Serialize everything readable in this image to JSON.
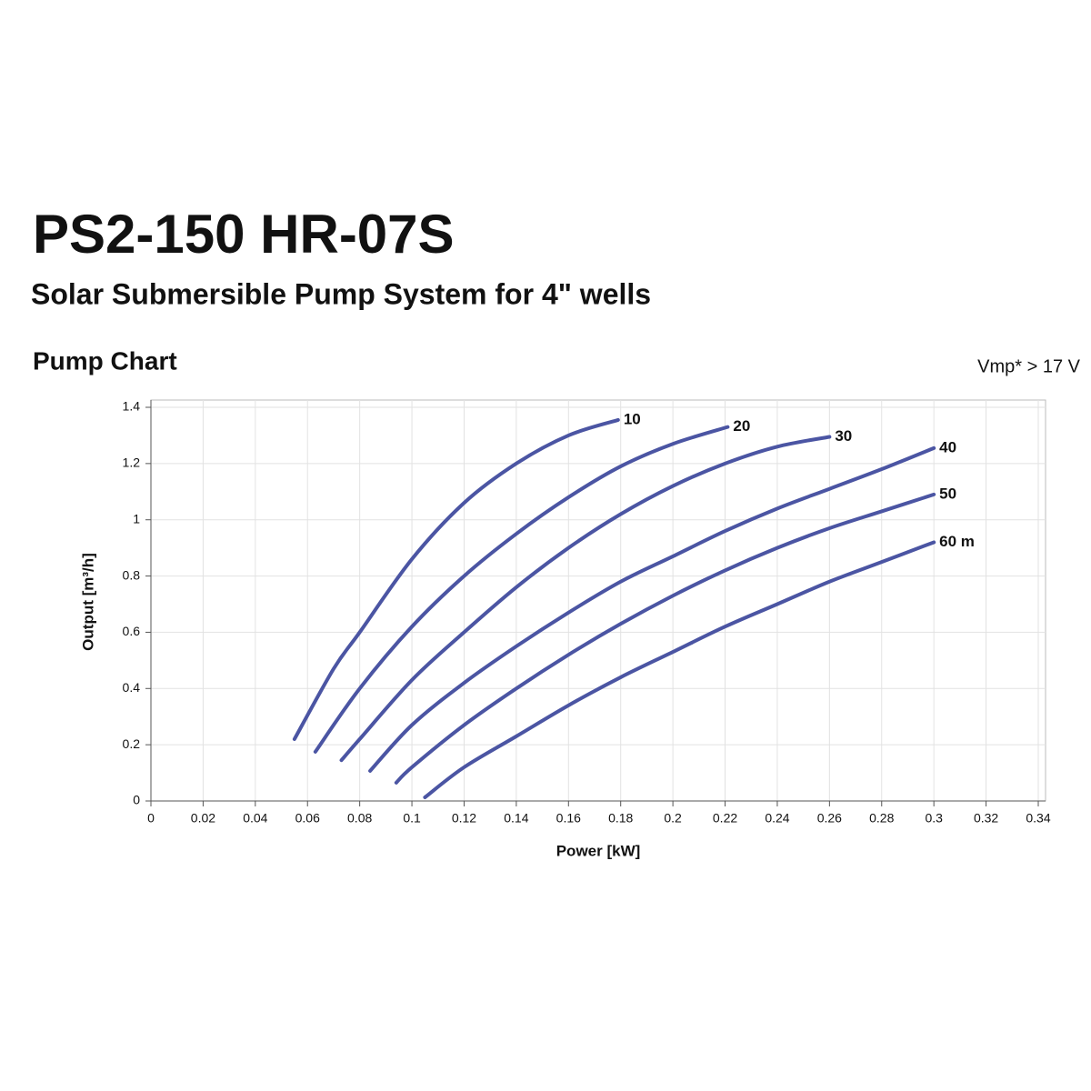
{
  "chart_data": {
    "type": "line",
    "title": "PS2-150 HR-07S",
    "subtitle": "Solar Submersible Pump System for 4\" wells",
    "chart_heading": "Pump Chart",
    "annotation": "Vmp* > 17 V",
    "x_label": "Power [kW]",
    "y_label": "Output [m³/h]",
    "xlim": [
      0,
      0.34
    ],
    "ylim": [
      0,
      1.4
    ],
    "xticks": [
      0,
      0.02,
      0.04,
      0.06,
      0.08,
      0.1,
      0.12,
      0.14,
      0.16,
      0.18,
      0.2,
      0.22,
      0.24,
      0.26,
      0.28,
      0.3,
      0.32,
      0.34
    ],
    "yticks": [
      0,
      0.2,
      0.4,
      0.6,
      0.8,
      1,
      1.2,
      1.4
    ],
    "grid": true,
    "series": [
      {
        "name": "10",
        "color": "#4b55a3",
        "x": [
          0.055,
          0.07,
          0.08,
          0.1,
          0.12,
          0.14,
          0.16,
          0.179
        ],
        "values": [
          0.22,
          0.47,
          0.6,
          0.86,
          1.06,
          1.2,
          1.3,
          1.355
        ]
      },
      {
        "name": "20",
        "color": "#4b55a3",
        "x": [
          0.063,
          0.08,
          0.1,
          0.12,
          0.14,
          0.16,
          0.18,
          0.2,
          0.221
        ],
        "values": [
          0.175,
          0.4,
          0.62,
          0.8,
          0.95,
          1.08,
          1.19,
          1.27,
          1.33
        ]
      },
      {
        "name": "30",
        "color": "#4b55a3",
        "x": [
          0.073,
          0.08,
          0.1,
          0.12,
          0.14,
          0.16,
          0.18,
          0.2,
          0.22,
          0.24,
          0.26
        ],
        "values": [
          0.145,
          0.22,
          0.43,
          0.6,
          0.76,
          0.9,
          1.02,
          1.12,
          1.2,
          1.26,
          1.295
        ]
      },
      {
        "name": "40",
        "color": "#4b55a3",
        "x": [
          0.084,
          0.1,
          0.12,
          0.14,
          0.16,
          0.18,
          0.2,
          0.22,
          0.24,
          0.26,
          0.28,
          0.3
        ],
        "values": [
          0.107,
          0.27,
          0.42,
          0.55,
          0.67,
          0.78,
          0.87,
          0.96,
          1.04,
          1.11,
          1.18,
          1.255
        ]
      },
      {
        "name": "50",
        "color": "#4b55a3",
        "x": [
          0.094,
          0.1,
          0.12,
          0.14,
          0.16,
          0.18,
          0.2,
          0.22,
          0.24,
          0.26,
          0.28,
          0.3
        ],
        "values": [
          0.065,
          0.12,
          0.27,
          0.4,
          0.52,
          0.63,
          0.73,
          0.82,
          0.9,
          0.97,
          1.03,
          1.09
        ]
      },
      {
        "name": "60 m",
        "color": "#4b55a3",
        "x": [
          0.105,
          0.12,
          0.14,
          0.16,
          0.18,
          0.2,
          0.22,
          0.24,
          0.26,
          0.28,
          0.3
        ],
        "values": [
          0.013,
          0.12,
          0.23,
          0.34,
          0.44,
          0.53,
          0.62,
          0.7,
          0.78,
          0.85,
          0.92
        ]
      }
    ]
  }
}
